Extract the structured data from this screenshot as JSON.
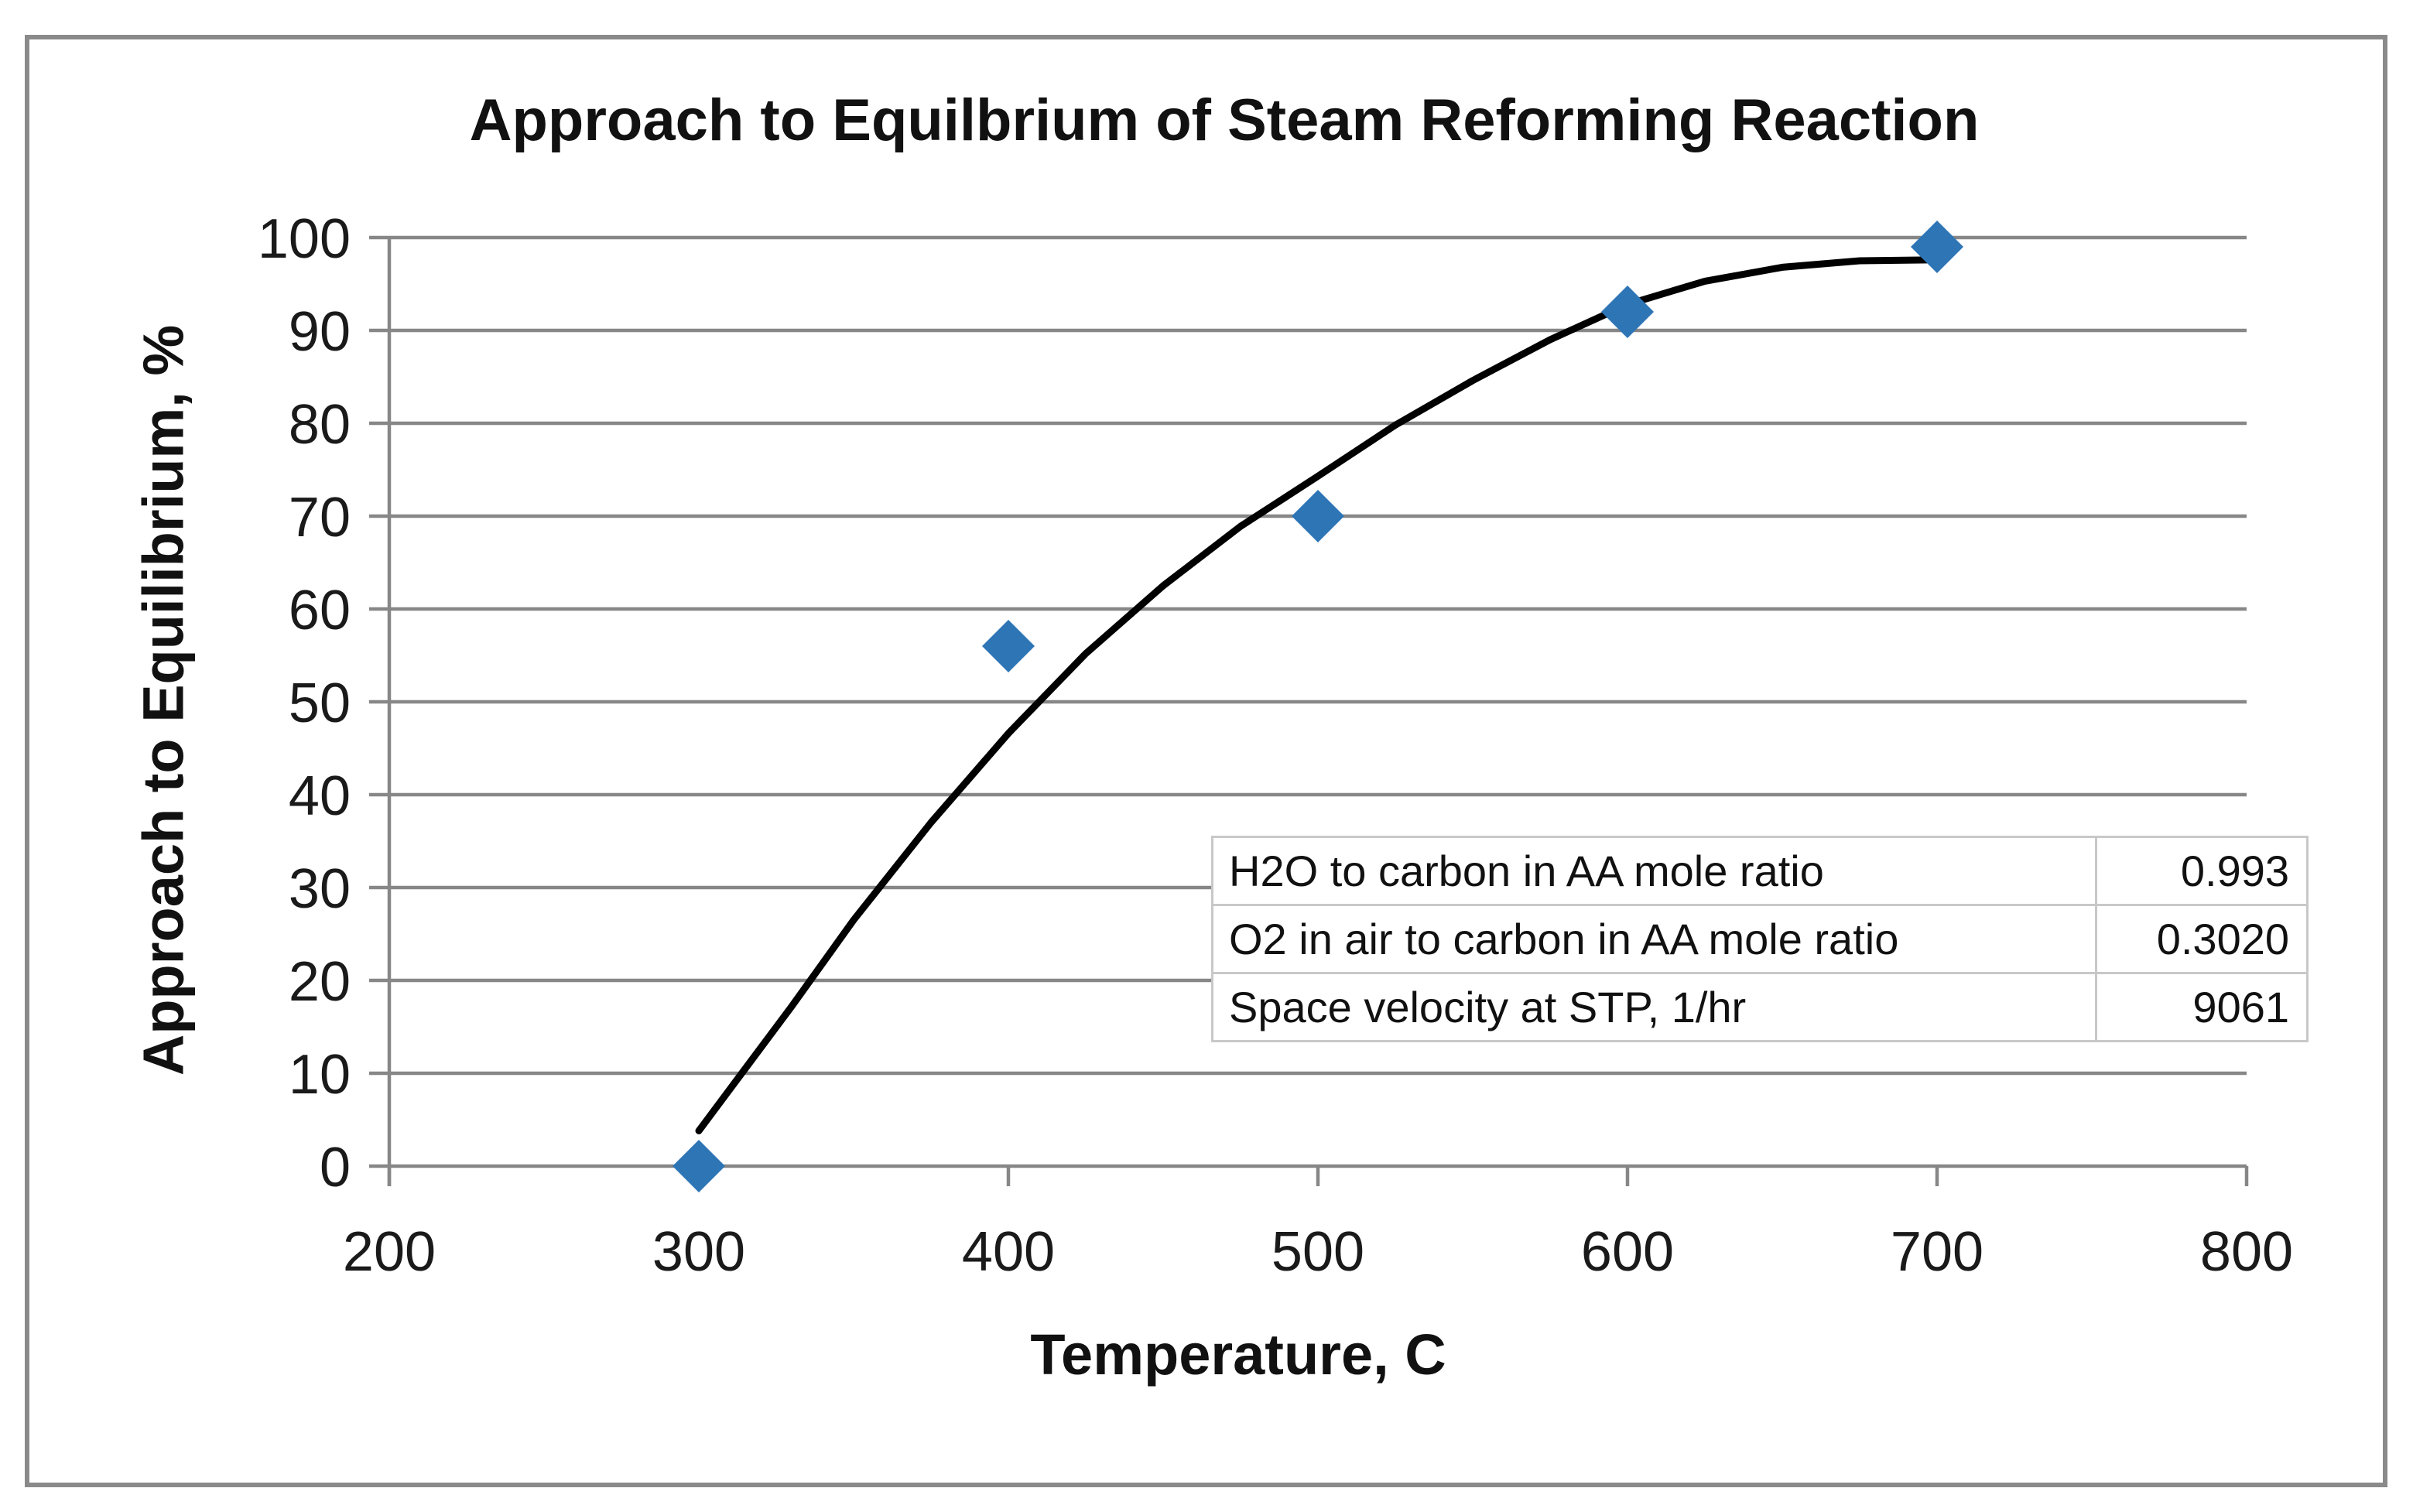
{
  "chart_data": {
    "type": "scatter",
    "title": "Approach to Equilbrium of Steam Reforming Reaction",
    "xlabel": "Temperature, C",
    "ylabel": "Approach to Equilibrium, %",
    "xlim": [
      200,
      800
    ],
    "ylim": [
      0,
      100
    ],
    "xticks": [
      200,
      300,
      400,
      500,
      600,
      700,
      800
    ],
    "yticks": [
      0,
      10,
      20,
      30,
      40,
      50,
      60,
      70,
      80,
      90,
      100
    ],
    "grid": "horizontal",
    "legend": "none",
    "series": [
      {
        "name": "approach-to-equilibrium-points",
        "marker": "diamond",
        "points": [
          [
            300,
            0
          ],
          [
            400,
            56
          ],
          [
            500,
            70
          ],
          [
            600,
            92
          ],
          [
            700,
            99
          ]
        ]
      },
      {
        "name": "trend-line",
        "marker": "none",
        "points": [
          [
            300,
            3.8
          ],
          [
            315,
            10.5
          ],
          [
            330,
            17.2
          ],
          [
            350,
            26.5
          ],
          [
            375,
            37.0
          ],
          [
            400,
            46.6
          ],
          [
            425,
            55.2
          ],
          [
            450,
            62.5
          ],
          [
            475,
            68.9
          ],
          [
            500,
            74.3
          ],
          [
            525,
            79.8
          ],
          [
            550,
            84.6
          ],
          [
            575,
            89.0
          ],
          [
            600,
            92.8
          ],
          [
            625,
            95.3
          ],
          [
            650,
            96.8
          ],
          [
            675,
            97.5
          ],
          [
            700,
            97.6
          ]
        ]
      }
    ],
    "annotation_table": {
      "rows": [
        {
          "label": "H2O to carbon in AA mole ratio",
          "value": "0.993"
        },
        {
          "label": "O2 in air to carbon in AA mole ratio",
          "value": "0.3020"
        },
        {
          "label": "Space velocity at STP, 1/hr",
          "value": "9061"
        }
      ]
    },
    "colors": {
      "marker": "#2E75B6",
      "trend": "#000000",
      "grid": "#878787",
      "axis": "#878787",
      "tick_text": "#1A1A1A",
      "frame_border": "#8A8A8A",
      "table_border": "#C8C8C8"
    }
  }
}
